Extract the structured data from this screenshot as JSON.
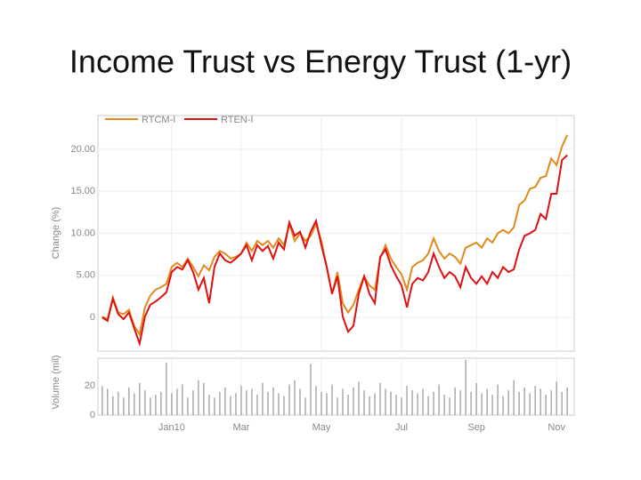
{
  "title": "Income Trust vs Energy Trust (1-yr)",
  "chart_data": [
    {
      "type": "line",
      "ylabel": "Change (%)",
      "series": [
        {
          "name": "RTCM-I",
          "color": "#e08a1e",
          "values": [
            0.1,
            -0.2,
            2.4,
            0.6,
            0.4,
            0.9,
            -1.0,
            -2.0,
            1.2,
            2.6,
            3.3,
            3.6,
            4.0,
            6.0,
            6.5,
            6.0,
            7.0,
            6.0,
            4.9,
            6.2,
            5.6,
            7.2,
            7.9,
            7.6,
            7.0,
            7.2,
            7.6,
            8.9,
            7.9,
            9.1,
            8.6,
            9.1,
            8.3,
            9.4,
            8.6,
            11.1,
            9.1,
            10.0,
            9.1,
            9.7,
            11.1,
            9.1,
            6.0,
            2.8,
            5.4,
            1.7,
            0.6,
            1.5,
            3.3,
            4.9,
            3.8,
            3.3,
            7.0,
            8.6,
            7.0,
            6.0,
            5.1,
            3.3,
            6.0,
            6.5,
            6.8,
            7.6,
            9.4,
            7.9,
            7.0,
            7.6,
            7.2,
            6.4,
            8.3,
            8.6,
            8.9,
            8.3,
            9.4,
            8.9,
            10.0,
            10.4,
            10.0,
            10.7,
            13.4,
            13.9,
            15.3,
            15.5,
            16.6,
            16.8,
            18.9,
            18.1,
            20.3,
            21.7
          ]
        },
        {
          "name": "RTEN-I",
          "color": "#dd1111",
          "values": [
            0.0,
            -0.4,
            2.2,
            0.4,
            -0.2,
            0.6,
            -1.3,
            -3.1,
            0.1,
            1.5,
            1.9,
            2.4,
            3.0,
            5.4,
            6.0,
            5.7,
            6.8,
            5.4,
            3.3,
            4.7,
            1.7,
            6.0,
            7.6,
            6.8,
            6.5,
            7.0,
            7.6,
            8.6,
            6.8,
            8.6,
            7.9,
            8.5,
            7.0,
            8.9,
            8.1,
            11.3,
            9.7,
            10.2,
            8.3,
            10.2,
            11.5,
            8.6,
            6.0,
            2.8,
            4.9,
            0.1,
            -1.7,
            -1.0,
            2.8,
            4.9,
            2.8,
            1.7,
            7.2,
            8.1,
            6.2,
            4.9,
            3.8,
            1.2,
            4.0,
            4.7,
            4.4,
            5.4,
            7.6,
            6.0,
            4.7,
            5.4,
            4.9,
            3.6,
            6.0,
            4.7,
            4.0,
            4.9,
            4.0,
            5.4,
            4.7,
            6.0,
            5.4,
            5.7,
            8.1,
            9.7,
            10.0,
            10.4,
            12.3,
            11.7,
            14.7,
            14.7,
            18.7,
            19.3
          ]
        }
      ],
      "xlim": [
        -0.8,
        88.3
      ],
      "ylim": [
        -4,
        24
      ],
      "yticks": [
        0,
        {
          "value": 5,
          "label": "5.00"
        },
        {
          "value": 10,
          "label": "10.00"
        },
        {
          "value": 15,
          "label": "15.00"
        },
        {
          "value": 20,
          "label": "20.00"
        }
      ],
      "grid": true,
      "legend": "top-left"
    },
    {
      "type": "bar",
      "ylabel": "Volume (mil)",
      "color": "#aaaaaa",
      "values": [
        20,
        18,
        13,
        16,
        12,
        19,
        15,
        22,
        17,
        12,
        14,
        16,
        36,
        15,
        18,
        21,
        12,
        17,
        24,
        22,
        14,
        12,
        16,
        19,
        13,
        15,
        20,
        17,
        18,
        14,
        22,
        16,
        19,
        15,
        13,
        21,
        24,
        18,
        12,
        35,
        20,
        16,
        15,
        21,
        12,
        18,
        14,
        19,
        23,
        17,
        13,
        15,
        22,
        18,
        16,
        14,
        12,
        20,
        17,
        15,
        18,
        13,
        16,
        21,
        14,
        12,
        19,
        17,
        38,
        16,
        22,
        15,
        18,
        14,
        21,
        13,
        17,
        24,
        16,
        19,
        15,
        20,
        18,
        14,
        17,
        23,
        16,
        19
      ],
      "xlim": [
        -0.8,
        88.3
      ],
      "xticks": [
        {
          "value": 13,
          "label": "Jan10"
        },
        {
          "value": 26,
          "label": "Mar"
        },
        {
          "value": 41,
          "label": "May"
        },
        {
          "value": 56,
          "label": "Jul"
        },
        {
          "value": 70,
          "label": "Sep"
        },
        {
          "value": 85,
          "label": "Nov"
        }
      ],
      "ylim": [
        0,
        39
      ],
      "yticks": [
        0,
        20
      ]
    }
  ]
}
